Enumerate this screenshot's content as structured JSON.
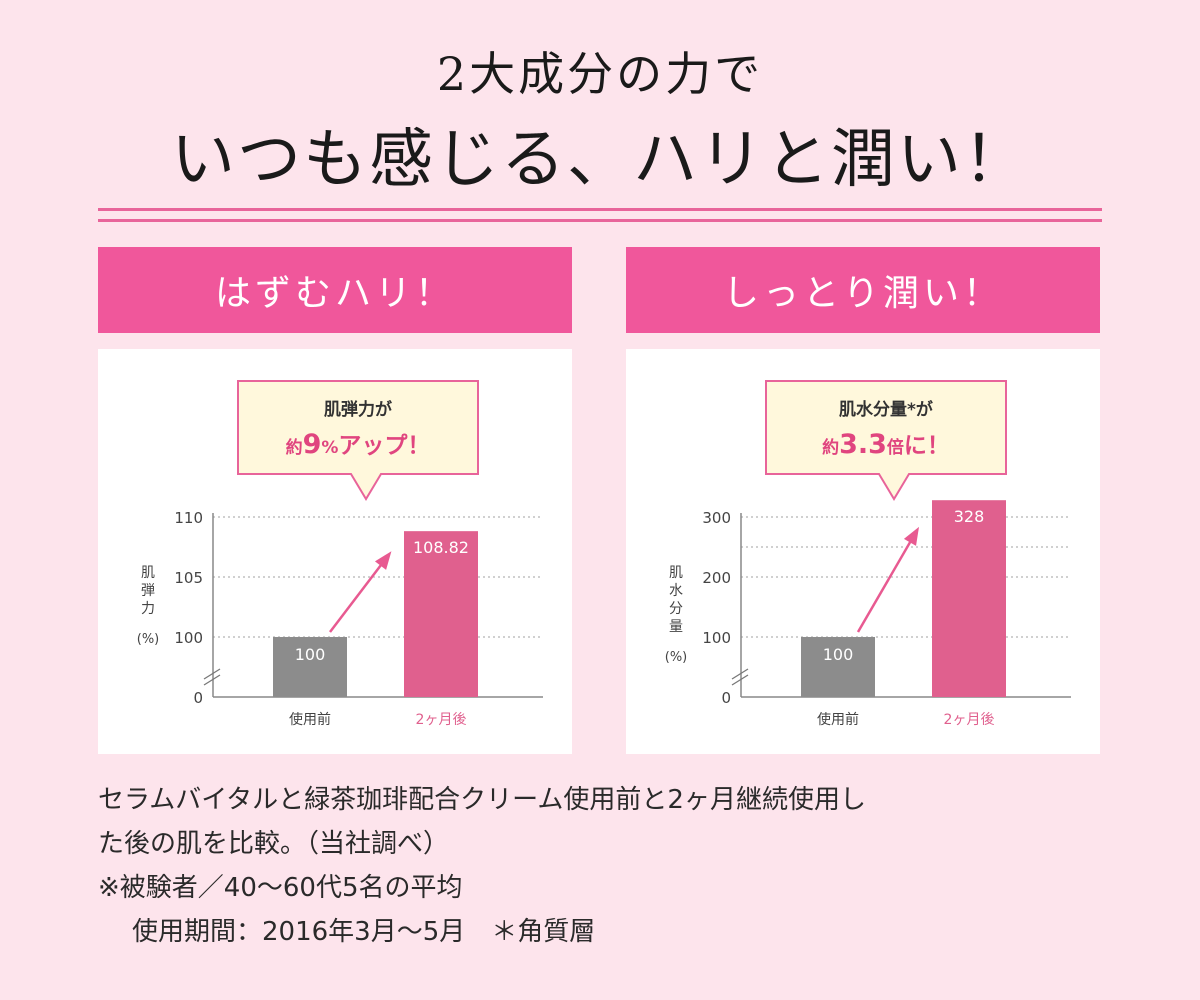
{
  "headline": {
    "line1": "2大成分の力で",
    "line2": "いつも感じる、ハリと潤い！"
  },
  "panels": [
    {
      "header": "はずむハリ！",
      "callout": {
        "line1": "肌弾力が",
        "line2_prefix": "約",
        "line2_value": "9",
        "line2_unit": "%",
        "line2_suffix": "アップ！"
      }
    },
    {
      "header": "しっとり潤い！",
      "callout": {
        "line1": "肌水分量*が",
        "line2_prefix": "約",
        "line2_value": "3.3",
        "line2_unit": "倍",
        "line2_suffix": "に！"
      }
    }
  ],
  "chart_data": [
    {
      "type": "bar",
      "categories": [
        "使用前",
        "2ヶ月後"
      ],
      "values": [
        100,
        108.82
      ],
      "value_labels": [
        "100",
        "108.82"
      ],
      "ylabel": "肌弾力",
      "ylabel_unit": "(%)",
      "yticks": [
        0,
        100,
        105,
        110
      ],
      "ylim": [
        100,
        110
      ],
      "axis_break": true,
      "grid": true,
      "bar_colors": [
        "#8c8c8c",
        "#e0608e"
      ],
      "arrow_color": "#e85a91"
    },
    {
      "type": "bar",
      "categories": [
        "使用前",
        "2ヶ月後"
      ],
      "values": [
        100,
        328
      ],
      "value_labels": [
        "100",
        "328"
      ],
      "ylabel": "肌水分量",
      "ylabel_unit": "(%)",
      "yticks": [
        0,
        100,
        200,
        300
      ],
      "ylim": [
        100,
        300
      ],
      "axis_break": true,
      "grid": true,
      "bar_colors": [
        "#8c8c8c",
        "#e0608e"
      ],
      "arrow_color": "#e85a91"
    }
  ],
  "footnotes": [
    "セラムバイタルと緑茶珈琲配合クリーム使用前と2ヶ月継続使用し",
    "た後の肌を比較。（当社調べ）",
    "※被験者／40〜60代5名の平均",
    "使用期間：2016年3月〜5月　＊角質層"
  ],
  "colors": {
    "background": "#fde4ec",
    "accent": "#f0579b",
    "callout_fill": "#fff8dc",
    "callout_border": "#e8649a",
    "callout_accent_text": "#e0457f"
  }
}
